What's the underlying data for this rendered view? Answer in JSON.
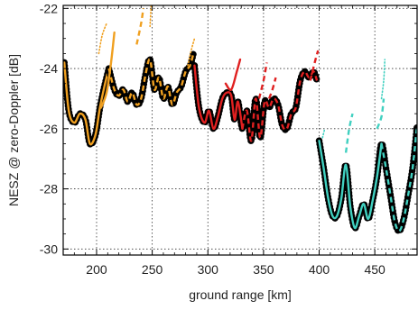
{
  "chart_data": {
    "type": "line",
    "title": "",
    "xlabel": "ground range [km]",
    "ylabel": "NESZ @ zero-Doppler [dB]",
    "xlim": [
      170,
      488
    ],
    "ylim": [
      -30.2,
      -21.9
    ],
    "grid": true,
    "x_ticks": [
      {
        "value": 200,
        "label": "200"
      },
      {
        "value": 250,
        "label": "250"
      },
      {
        "value": 300,
        "label": "300"
      },
      {
        "value": 350,
        "label": "350"
      },
      {
        "value": 400,
        "label": "400"
      },
      {
        "value": 450,
        "label": "450"
      }
    ],
    "y_ticks": [
      {
        "value": -30,
        "label": "-30"
      },
      {
        "value": -28,
        "label": "-28"
      },
      {
        "value": -26,
        "label": "-26"
      },
      {
        "value": -24,
        "label": "-24"
      },
      {
        "value": -22,
        "label": "-22"
      }
    ],
    "series": [
      {
        "color": "#000000",
        "style": "thick-solid",
        "x": [
          171,
          175,
          180,
          185,
          190,
          194,
          199,
          203,
          207,
          211
        ],
        "y": [
          -23.8,
          -25.4,
          -25.8,
          -25.5,
          -25.7,
          -26.5,
          -26.2,
          -25.3,
          -24.6,
          -24.0
        ]
      },
      {
        "color": "#f0a020",
        "style": "solid",
        "x": [
          171,
          175,
          180,
          185,
          190,
          194,
          199,
          203,
          207,
          211
        ],
        "y": [
          -23.8,
          -25.4,
          -25.8,
          -25.5,
          -25.7,
          -26.5,
          -26.2,
          -25.3,
          -24.6,
          -24.0
        ]
      },
      {
        "color": "#000000",
        "style": "thick-solid",
        "x": [
          211,
          216,
          220,
          224,
          228,
          232,
          236,
          240,
          244,
          248,
          252,
          256,
          260,
          264,
          268,
          272,
          276,
          280,
          284,
          287
        ],
        "y": [
          -24.0,
          -24.7,
          -24.9,
          -24.7,
          -25.1,
          -24.8,
          -25.2,
          -25.0,
          -24.2,
          -23.7,
          -24.7,
          -24.3,
          -25.0,
          -24.6,
          -25.2,
          -24.8,
          -24.6,
          -24.1,
          -23.9,
          -23.5
        ]
      },
      {
        "color": "#f0a020",
        "style": "dashed",
        "x": [
          211,
          216,
          220,
          224,
          228,
          232,
          236,
          240,
          244,
          248,
          252,
          256,
          260,
          264,
          268,
          272,
          276,
          280,
          284,
          287
        ],
        "y": [
          -24.0,
          -24.7,
          -24.9,
          -24.7,
          -25.1,
          -24.8,
          -25.2,
          -25.0,
          -24.2,
          -23.7,
          -24.7,
          -24.3,
          -25.0,
          -24.6,
          -25.2,
          -24.8,
          -24.6,
          -24.1,
          -23.9,
          -23.5
        ]
      },
      {
        "color": "#000000",
        "style": "thick-solid",
        "x": [
          288,
          292,
          297,
          301,
          305,
          309,
          313,
          317,
          321,
          324,
          327,
          331,
          335,
          339,
          343,
          347,
          351,
          355,
          359,
          363,
          367,
          371,
          375,
          379,
          383,
          387,
          391,
          395,
          398
        ],
        "y": [
          -23.9,
          -25.3,
          -25.8,
          -25.4,
          -26.0,
          -25.6,
          -25.0,
          -24.8,
          -24.9,
          -25.7,
          -25.1,
          -26.0,
          -25.4,
          -26.4,
          -25.0,
          -26.3,
          -25.1,
          -25.3,
          -25.0,
          -25.2,
          -25.9,
          -26.0,
          -25.5,
          -25.3,
          -24.4,
          -24.1,
          -24.3,
          -24.1,
          -24.4
        ]
      },
      {
        "color": "#e02020",
        "style": "solid",
        "x": [
          288,
          292,
          297,
          301,
          305,
          309,
          313,
          317,
          321,
          324,
          327,
          331
        ],
        "y": [
          -23.9,
          -25.3,
          -25.8,
          -25.4,
          -26.0,
          -25.6,
          -25.0,
          -24.8,
          -24.9,
          -25.7,
          -25.1,
          -26.0
        ]
      },
      {
        "color": "#e02020",
        "style": "dashed",
        "x": [
          331,
          335,
          339,
          343,
          347,
          351,
          355,
          359,
          363,
          367,
          371,
          375,
          379,
          383,
          387,
          391,
          395,
          398
        ],
        "y": [
          -26.0,
          -25.4,
          -26.4,
          -25.0,
          -26.3,
          -25.1,
          -25.3,
          -25.0,
          -25.2,
          -25.9,
          -26.0,
          -25.5,
          -25.3,
          -24.4,
          -24.1,
          -24.3,
          -24.1,
          -24.4
        ]
      },
      {
        "color": "#000000",
        "style": "thick-solid",
        "x": [
          400,
          404,
          408,
          412,
          416,
          420,
          424,
          428,
          432,
          436,
          440,
          444,
          448,
          452,
          456,
          460,
          464,
          468,
          472,
          476,
          480,
          484,
          488
        ],
        "y": [
          -26.4,
          -27.3,
          -28.3,
          -28.9,
          -28.9,
          -28.3,
          -27.2,
          -28.6,
          -29.3,
          -28.9,
          -28.5,
          -29.0,
          -28.4,
          -27.6,
          -26.5,
          -27.3,
          -28.2,
          -29.1,
          -29.4,
          -29.0,
          -28.2,
          -27.3,
          -25.9
        ]
      },
      {
        "color": "#40d0c0",
        "style": "solid",
        "x": [
          400,
          404,
          408,
          412,
          416,
          420,
          424,
          428,
          432,
          436,
          440,
          444,
          448,
          452,
          456
        ],
        "y": [
          -26.4,
          -27.3,
          -28.3,
          -28.9,
          -28.9,
          -28.3,
          -27.2,
          -28.6,
          -29.3,
          -28.9,
          -28.5,
          -29.0,
          -28.4,
          -27.6,
          -26.5
        ]
      },
      {
        "color": "#40d0c0",
        "style": "dashed",
        "x": [
          456,
          460,
          464,
          468,
          472,
          476,
          480,
          484,
          488
        ],
        "y": [
          -26.5,
          -27.3,
          -28.2,
          -29.1,
          -29.4,
          -29.0,
          -28.2,
          -27.3,
          -25.9
        ]
      },
      {
        "color": "#f0a020",
        "style": "solid",
        "x": [
          204,
          209,
          213,
          216
        ],
        "y": [
          -25.3,
          -24.8,
          -23.8,
          -22.8
        ]
      },
      {
        "color": "#f0a020",
        "style": "dotted",
        "x": [
          202,
          205,
          209
        ],
        "y": [
          -23.5,
          -22.9,
          -22.5
        ]
      },
      {
        "color": "#f0a020",
        "style": "dashed",
        "x": [
          236,
          240,
          242
        ],
        "y": [
          -23.2,
          -22.5,
          -22.0
        ]
      },
      {
        "color": "#f0a020",
        "style": "dotted",
        "x": [
          248,
          249
        ],
        "y": [
          -22.6,
          -21.9
        ]
      },
      {
        "color": "#f0a020",
        "style": "dotted",
        "x": [
          282,
          285,
          288
        ],
        "y": [
          -23.9,
          -23.4,
          -23.0
        ]
      },
      {
        "color": "#e02020",
        "style": "solid",
        "x": [
          316,
          321,
          326,
          329
        ],
        "y": [
          -24.5,
          -24.7,
          -24.1,
          -23.7
        ]
      },
      {
        "color": "#e02020",
        "style": "dashed",
        "x": [
          346,
          350,
          353
        ],
        "y": [
          -25.0,
          -24.4,
          -23.8
        ]
      },
      {
        "color": "#e02020",
        "style": "dashed",
        "x": [
          355,
          358,
          361
        ],
        "y": [
          -25.0,
          -24.7,
          -24.3
        ]
      },
      {
        "color": "#e02020",
        "style": "dashed",
        "x": [
          392,
          396,
          399
        ],
        "y": [
          -24.4,
          -23.8,
          -23.4
        ]
      },
      {
        "color": "#40d0c0",
        "style": "dotted",
        "x": [
          403,
          405
        ],
        "y": [
          -26.3,
          -26.0
        ]
      },
      {
        "color": "#40d0c0",
        "style": "dashed",
        "x": [
          424,
          427,
          430
        ],
        "y": [
          -26.8,
          -26.0,
          -25.5
        ]
      },
      {
        "color": "#40d0c0",
        "style": "dashed",
        "x": [
          452,
          456,
          458
        ],
        "y": [
          -26.0,
          -25.6,
          -25.0
        ]
      },
      {
        "color": "#40d0c0",
        "style": "dotted",
        "x": [
          456,
          458,
          459
        ],
        "y": [
          -25.0,
          -24.4,
          -23.7
        ]
      }
    ]
  }
}
